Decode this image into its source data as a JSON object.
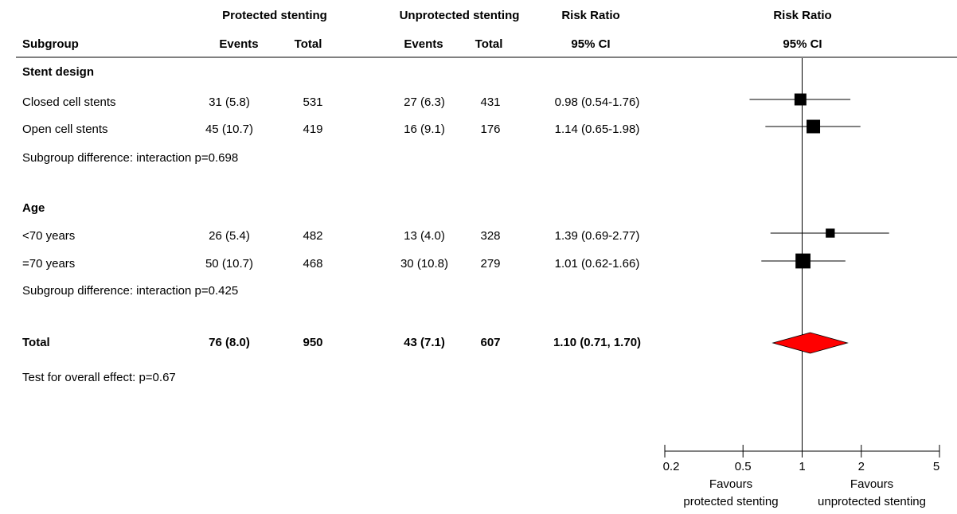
{
  "chart_data": {
    "type": "forest",
    "group_headers": [
      "Protected stenting",
      "Unprotected stenting",
      "Risk Ratio",
      "Risk Ratio"
    ],
    "column_headers": [
      "Subgroup",
      "Events",
      "Total",
      "Events",
      "Total",
      "95% CI",
      "95% CI"
    ],
    "rows": [
      {
        "label": "Stent design",
        "bold": true
      },
      {
        "label": "Closed cell stents",
        "cells": [
          "31 (5.8)",
          "531",
          "27 (6.3)",
          "431",
          "0.98 (0.54-1.76)"
        ],
        "estimate": 0.98,
        "ci": [
          0.54,
          1.76
        ],
        "weight": 14
      },
      {
        "label": "Open cell stents",
        "cells": [
          "45 (10.7)",
          "419",
          "16 (9.1)",
          "176",
          "1.14 (0.65-1.98)"
        ],
        "estimate": 1.14,
        "ci": [
          0.65,
          1.98
        ],
        "weight": 18
      },
      {
        "label": "Subgroup difference: interaction p=0.698"
      },
      {
        "label": "Age",
        "bold": true
      },
      {
        "label": "<70 years",
        "cells": [
          "26 (5.4)",
          "482",
          "13 (4.0)",
          "328",
          "1.39 (0.69-2.77)"
        ],
        "estimate": 1.39,
        "ci": [
          0.69,
          2.77
        ],
        "weight": 8
      },
      {
        "label": "=70 years",
        "cells": [
          "50 (10.7)",
          "468",
          "30 (10.8)",
          "279",
          "1.01 (0.62-1.66)"
        ],
        "estimate": 1.01,
        "ci": [
          0.62,
          1.66
        ],
        "weight": 22
      },
      {
        "label": "Subgroup difference: interaction p=0.425"
      },
      {
        "label": "Total",
        "bold": true,
        "summary": true,
        "cells": [
          "76 (8.0)",
          "950",
          "43 (7.1)",
          "607",
          "1.10 (0.71, 1.70)"
        ],
        "estimate": 1.1,
        "ci": [
          0.71,
          1.7
        ]
      },
      {
        "label": "Test for overall effect: p=0.67"
      }
    ],
    "log_scale": true,
    "xlim": [
      0.2,
      5
    ],
    "xticks": [
      0.2,
      0.5,
      1,
      2,
      5
    ],
    "reference": 1,
    "x_labels": [
      [
        "Favours",
        "protected stenting"
      ],
      [
        "Favours",
        "unprotected stenting"
      ]
    ],
    "marker_color": "#000000",
    "summary_color": "#ff0000"
  }
}
